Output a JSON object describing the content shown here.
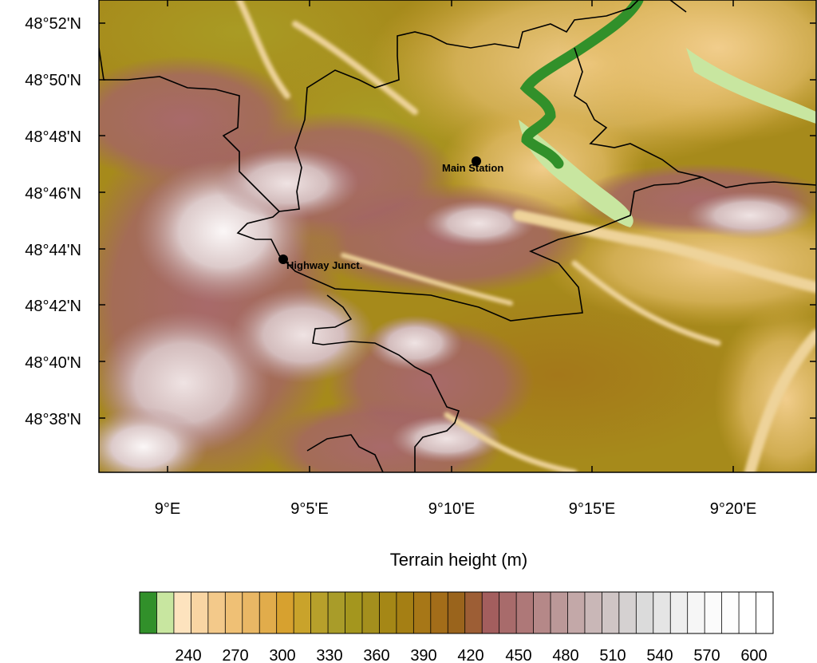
{
  "map": {
    "y_ticks": [
      "48°52'N",
      "48°50'N",
      "48°48'N",
      "48°46'N",
      "48°44'N",
      "48°42'N",
      "48°40'N",
      "48°38'N"
    ],
    "x_ticks": [
      "9°E",
      "9°5'E",
      "9°10'E",
      "9°15'E",
      "9°20'E"
    ],
    "markers": [
      {
        "name": "Main Station"
      },
      {
        "name": "Highway Junct."
      }
    ]
  },
  "colorbar": {
    "title": "Terrain height (m)",
    "labels": [
      "240",
      "270",
      "300",
      "330",
      "360",
      "390",
      "420",
      "450",
      "480",
      "510",
      "540",
      "570",
      "600"
    ],
    "colors": [
      "#31902a",
      "#c8e6a0",
      "#fde3be",
      "#f9d5a3",
      "#f3c98a",
      "#efc075",
      "#e9b765",
      "#e1ac4b",
      "#d7a12f",
      "#c9a32b",
      "#b7a02b",
      "#a99c29",
      "#a4961e",
      "#a48f1d",
      "#a58716",
      "#a57f14",
      "#a77717",
      "#a36d19",
      "#9a641c",
      "#9d5e35",
      "#a35e5e",
      "#a86b6b",
      "#ae7878",
      "#b58888",
      "#bb9898",
      "#c3a8a8",
      "#c9b7b7",
      "#cfc5c5",
      "#d5d1d1",
      "#dbdbdb",
      "#e5e5e5",
      "#eeeeee",
      "#f6f6f6",
      "#fbfbfb",
      "#fdfdfd",
      "#ffffff",
      "#ffffff"
    ]
  }
}
